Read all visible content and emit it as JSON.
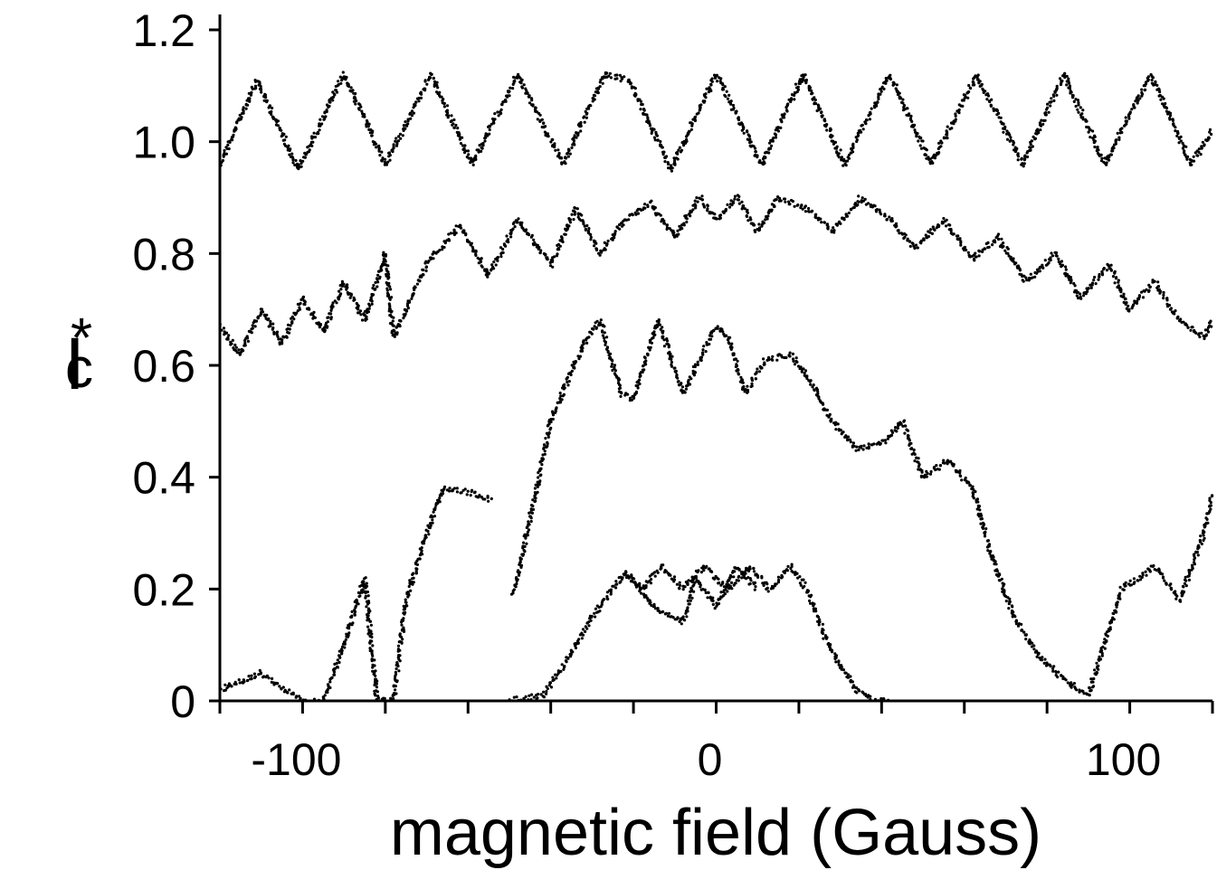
{
  "chart_data": {
    "type": "scatter",
    "title": "",
    "xlabel": "magnetic field (Gauss)",
    "ylabel_main": "I",
    "ylabel_sub": "c",
    "ylabel_sup": "*",
    "xlim": [
      -120,
      120
    ],
    "ylim": [
      0,
      1.2
    ],
    "grid": false,
    "legend": "none",
    "marker_color": "#000000",
    "xticks": [
      {
        "value": -100,
        "label": "-100"
      },
      {
        "value": 0,
        "label": "0"
      },
      {
        "value": 100,
        "label": "100"
      }
    ],
    "xminor": [
      -120,
      -80,
      -60,
      -40,
      -20,
      20,
      40,
      60,
      80,
      120
    ],
    "yticks": [
      {
        "value": 0,
        "label": "0"
      },
      {
        "value": 0.2,
        "label": "0.2"
      },
      {
        "value": 0.4,
        "label": "0.4"
      },
      {
        "value": 0.6,
        "label": "0.6"
      },
      {
        "value": 0.8,
        "label": "0.8"
      },
      {
        "value": 1.0,
        "label": "1.0"
      },
      {
        "value": 1.2,
        "label": "1.2"
      }
    ],
    "series": [
      {
        "x": [
          -120,
          -111,
          -101,
          -90,
          -80,
          -69,
          -59,
          -48,
          -37,
          -27,
          -21,
          -11,
          0,
          11,
          21,
          31,
          42,
          52,
          63,
          74,
          84,
          94,
          105,
          115,
          120
        ],
        "y": [
          0.96,
          1.11,
          0.95,
          1.12,
          0.96,
          1.12,
          0.96,
          1.12,
          0.96,
          1.12,
          1.11,
          0.95,
          1.12,
          0.96,
          1.12,
          0.96,
          1.12,
          0.96,
          1.12,
          0.96,
          1.12,
          0.96,
          1.12,
          0.96,
          1.02
        ]
      },
      {
        "x": [
          -120,
          -115,
          -110,
          -105,
          -100,
          -95,
          -90,
          -85,
          -80,
          -78,
          -70,
          -62,
          -55,
          -48,
          -40,
          -34,
          -28,
          -22,
          -16,
          -10,
          -4,
          0,
          5,
          10,
          15,
          22,
          28,
          35,
          42,
          48,
          55,
          62,
          68,
          75,
          82,
          88,
          95,
          100,
          106,
          112,
          118,
          120
        ],
        "y": [
          0.67,
          0.62,
          0.7,
          0.64,
          0.72,
          0.66,
          0.75,
          0.68,
          0.8,
          0.65,
          0.78,
          0.85,
          0.76,
          0.86,
          0.78,
          0.88,
          0.8,
          0.86,
          0.89,
          0.83,
          0.9,
          0.86,
          0.9,
          0.84,
          0.9,
          0.88,
          0.84,
          0.9,
          0.86,
          0.81,
          0.86,
          0.79,
          0.83,
          0.75,
          0.8,
          0.72,
          0.78,
          0.7,
          0.75,
          0.68,
          0.65,
          0.68
        ]
      },
      {
        "x": [
          -49,
          -40,
          -32,
          -28,
          -23,
          -20,
          -14,
          -8,
          0,
          3,
          7,
          12,
          18,
          22,
          28,
          34,
          40,
          45,
          50,
          56,
          62,
          67,
          72,
          78,
          84,
          90,
          98,
          106,
          112,
          118,
          120
        ],
        "y": [
          0.19,
          0.5,
          0.64,
          0.68,
          0.55,
          0.54,
          0.68,
          0.55,
          0.67,
          0.65,
          0.55,
          0.61,
          0.62,
          0.58,
          0.5,
          0.45,
          0.46,
          0.5,
          0.4,
          0.43,
          0.38,
          0.25,
          0.15,
          0.08,
          0.04,
          0.01,
          0.2,
          0.24,
          0.18,
          0.3,
          0.37
        ]
      },
      {
        "x": [
          -120,
          -110,
          -100,
          -95,
          -90,
          -85,
          -82,
          -78,
          -75,
          -70,
          -66,
          -65,
          -58,
          -54
        ],
        "y": [
          0.02,
          0.05,
          0.0,
          0.0,
          0.1,
          0.22,
          0.0,
          0.0,
          0.18,
          0.3,
          0.38,
          0.38,
          0.37,
          0.36
        ]
      },
      {
        "x": [
          -50,
          -42,
          -38,
          -30,
          -22,
          -18,
          -13,
          -8,
          -3,
          3,
          8,
          13,
          18,
          22,
          26,
          30,
          34,
          38,
          42
        ],
        "y": [
          0.0,
          0.01,
          0.05,
          0.15,
          0.23,
          0.2,
          0.24,
          0.2,
          0.24,
          0.2,
          0.24,
          0.2,
          0.24,
          0.2,
          0.12,
          0.06,
          0.02,
          0.0,
          0.0
        ]
      },
      {
        "x": [
          -22,
          -15,
          -8,
          -5,
          0,
          5,
          10
        ],
        "y": [
          0.23,
          0.17,
          0.14,
          0.22,
          0.17,
          0.24,
          0.2
        ]
      }
    ]
  }
}
